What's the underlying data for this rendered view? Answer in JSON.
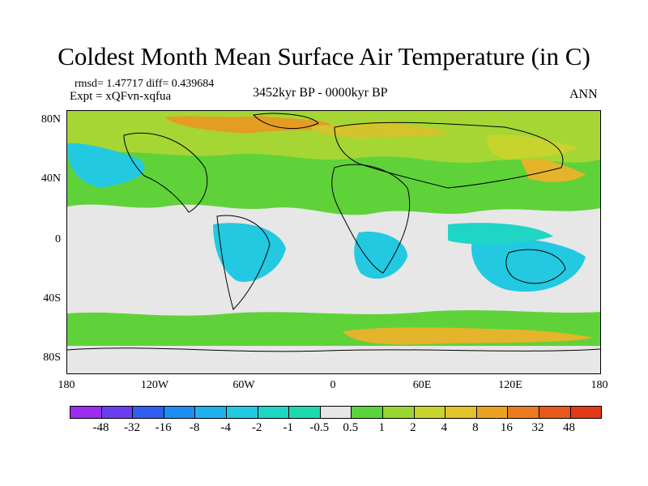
{
  "title": "Coldest Month Mean Surface Air Temperature (in C)",
  "stats": "rmsd= 1.47717 diff= 0.439684",
  "experiment": "Expt = xQFvn-xqfua",
  "period": "3452kyr BP - 0000kyr BP",
  "season": "ANN",
  "map": {
    "lat_labels": [
      "80N",
      "40N",
      "0",
      "40S",
      "80S"
    ],
    "lon_labels": [
      "180",
      "120W",
      "60W",
      "0",
      "60E",
      "120E",
      "180"
    ]
  },
  "colorbar": {
    "labels": [
      "-48",
      "-32",
      "-16",
      "-8",
      "-4",
      "-2",
      "-1",
      "-0.5",
      "0.5",
      "1",
      "2",
      "4",
      "8",
      "16",
      "32",
      "48"
    ],
    "colors": [
      "#9b2cf0",
      "#6a3ef0",
      "#2f5ef0",
      "#1c8ff0",
      "#1fb2ef",
      "#22c9e0",
      "#1fd6c4",
      "#20d8b0",
      "#e6e6e6",
      "#5ad43a",
      "#98d633",
      "#c7d42e",
      "#e4c22a",
      "#eba224",
      "#ea7a1f",
      "#e6581c",
      "#e23a18"
    ]
  }
}
